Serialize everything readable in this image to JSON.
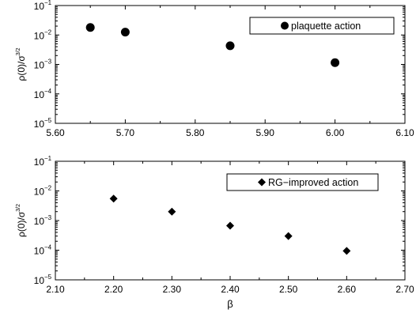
{
  "chart_data": [
    {
      "type": "scatter",
      "ylabel": "ρ(0)/σ",
      "ylabel_sup": "3/2",
      "xlabel": "",
      "xlim": [
        5.6,
        6.1
      ],
      "ylim": [
        1e-05,
        0.1
      ],
      "yscale": "log",
      "x_ticks": [
        "5.60",
        "5.70",
        "5.80",
        "5.90",
        "6.00",
        "6.10"
      ],
      "y_ticks": [
        {
          "base": "10",
          "exp": "−1"
        },
        {
          "base": "10",
          "exp": "−2"
        },
        {
          "base": "10",
          "exp": "−3"
        },
        {
          "base": "10",
          "exp": "−4"
        },
        {
          "base": "10",
          "exp": "−5"
        }
      ],
      "marker": "circle",
      "legend": {
        "label": "plaquette action",
        "position": "top-right"
      },
      "series": [
        {
          "name": "plaquette action",
          "x": [
            5.65,
            5.7,
            5.85,
            6.0
          ],
          "y": [
            0.018,
            0.0125,
            0.0043,
            0.00115
          ]
        }
      ]
    },
    {
      "type": "scatter",
      "ylabel": "ρ(0)/σ",
      "ylabel_sup": "3/2",
      "xlabel": "β",
      "xlim": [
        2.1,
        2.7
      ],
      "ylim": [
        1e-05,
        0.1
      ],
      "yscale": "log",
      "x_ticks": [
        "2.10",
        "2.20",
        "2.30",
        "2.40",
        "2.50",
        "2.60",
        "2.70"
      ],
      "y_ticks": [
        {
          "base": "10",
          "exp": "−1"
        },
        {
          "base": "10",
          "exp": "−2"
        },
        {
          "base": "10",
          "exp": "−3"
        },
        {
          "base": "10",
          "exp": "−4"
        },
        {
          "base": "10",
          "exp": "−5"
        }
      ],
      "marker": "diamond",
      "legend": {
        "label": "RG−improved action",
        "position": "top-right"
      },
      "series": [
        {
          "name": "RG−improved action",
          "x": [
            2.2,
            2.3,
            2.4,
            2.5,
            2.6
          ],
          "y": [
            0.0055,
            0.002,
            0.00067,
            0.0003,
            9.5e-05
          ]
        }
      ]
    }
  ]
}
